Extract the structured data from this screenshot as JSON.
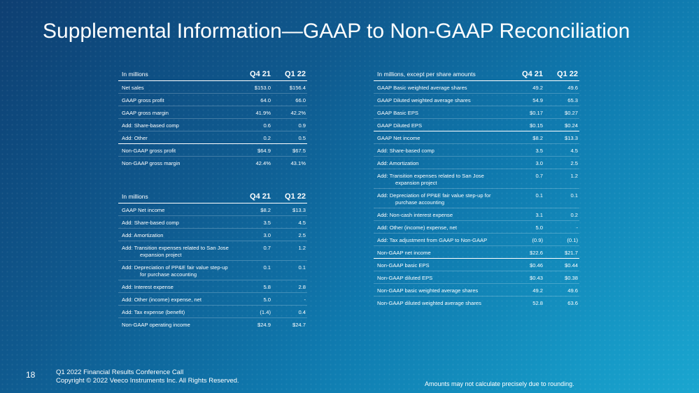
{
  "slide": {
    "title": "Supplemental Information—GAAP to Non-GAAP Reconciliation",
    "page_number": "18",
    "footer_line1": "Q1 2022 Financial Results Conference Call",
    "footer_line2": "Copyright © 2022 Veeco Instruments Inc. All Rights Reserved.",
    "note": "Amounts may not calculate precisely due to rounding."
  },
  "table_gross": {
    "header": {
      "label": "In millions",
      "col1": "Q4 21",
      "col2": "Q1 22"
    },
    "rows": [
      {
        "label": "Net sales",
        "q421": "$153.0",
        "q122": "$156.4"
      },
      {
        "label": "GAAP gross profit",
        "q421": "64.0",
        "q122": "66.0"
      },
      {
        "label": "GAAP gross margin",
        "q421": "41.9%",
        "q122": "42.2%"
      },
      {
        "label": "Add: Share-based comp",
        "q421": "0.6",
        "q122": "0.9"
      },
      {
        "label": "Add: Other",
        "q421": "0.2",
        "q122": "0.5"
      },
      {
        "label": "Non-GAAP gross profit",
        "q421": "$64.9",
        "q122": "$67.5"
      },
      {
        "label": "Non-GAAP gross margin",
        "q421": "42.4%",
        "q122": "43.1%"
      }
    ]
  },
  "table_operating": {
    "header": {
      "label": "In millions",
      "col1": "Q4 21",
      "col2": "Q1 22"
    },
    "rows": [
      {
        "label": "GAAP Net income",
        "q421": "$8.2",
        "q122": "$13.3"
      },
      {
        "label": "Add: Share-based comp",
        "q421": "3.5",
        "q122": "4.5"
      },
      {
        "label": "Add: Amortization",
        "q421": "3.0",
        "q122": "2.5"
      },
      {
        "label": "Add: Transition expenses related to San Jose",
        "label2": "expansion project",
        "q421": "0.7",
        "q122": "1.2"
      },
      {
        "label": "Add: Depreciation of PP&E fair value step-up",
        "label2": "for purchase accounting",
        "q421": "0.1",
        "q122": "0.1"
      },
      {
        "label": "Add: Interest expense",
        "q421": "5.8",
        "q122": "2.8"
      },
      {
        "label": "Add: Other (income) expense, net",
        "q421": "5.0",
        "q122": "-"
      },
      {
        "label": "Add: Tax expense (benefit)",
        "q421": "(1.4)",
        "q122": "0.4"
      },
      {
        "label": "Non-GAAP operating income",
        "q421": "$24.9",
        "q122": "$24.7"
      }
    ]
  },
  "table_eps": {
    "header": {
      "label": "In millions, except per share amounts",
      "col1": "Q4 21",
      "col2": "Q1 22"
    },
    "rows": [
      {
        "label": "GAAP Basic weighted average shares",
        "q421": "49.2",
        "q122": "49.6"
      },
      {
        "label": "GAAP Diluted weighted average shares",
        "q421": "54.9",
        "q122": "65.3"
      },
      {
        "label": "GAAP Basic EPS",
        "q421": "$0.17",
        "q122": "$0.27"
      },
      {
        "label": "GAAP Diluted EPS",
        "q421": "$0.15",
        "q122": "$0.24"
      },
      {
        "label": "GAAP Net income",
        "q421": "$8.2",
        "q122": "$13.3"
      },
      {
        "label": "Add: Share-based comp",
        "q421": "3.5",
        "q122": "4.5"
      },
      {
        "label": "Add: Amortization",
        "q421": "3.0",
        "q122": "2.5"
      },
      {
        "label": "Add: Transition expenses related to San Jose",
        "label2": "expansion project",
        "q421": "0.7",
        "q122": "1.2"
      },
      {
        "label": "Add: Depreciation of PP&E fair value step-up for",
        "label2": "purchase accounting",
        "q421": "0.1",
        "q122": "0.1"
      },
      {
        "label": "Add: Non-cash interest expense",
        "q421": "3.1",
        "q122": "0.2"
      },
      {
        "label": "Add: Other (income) expense, net",
        "q421": "5.0",
        "q122": "-"
      },
      {
        "label": "Add: Tax adjustment from GAAP to Non-GAAP",
        "q421": "(0.9)",
        "q122": "(0.1)"
      },
      {
        "label": "Non-GAAP net income",
        "q421": "$22.6",
        "q122": "$21.7"
      },
      {
        "label": "Non-GAAP basic EPS",
        "q421": "$0.46",
        "q122": "$0.44"
      },
      {
        "label": "Non-GAAP diluted EPS",
        "q421": "$0.43",
        "q122": "$0.38"
      },
      {
        "label": "Non-GAAP basic weighted average shares",
        "q421": "49.2",
        "q122": "49.6"
      },
      {
        "label": "Non-GAAP diluted weighted average shares",
        "q421": "52.8",
        "q122": "63.6"
      }
    ]
  }
}
